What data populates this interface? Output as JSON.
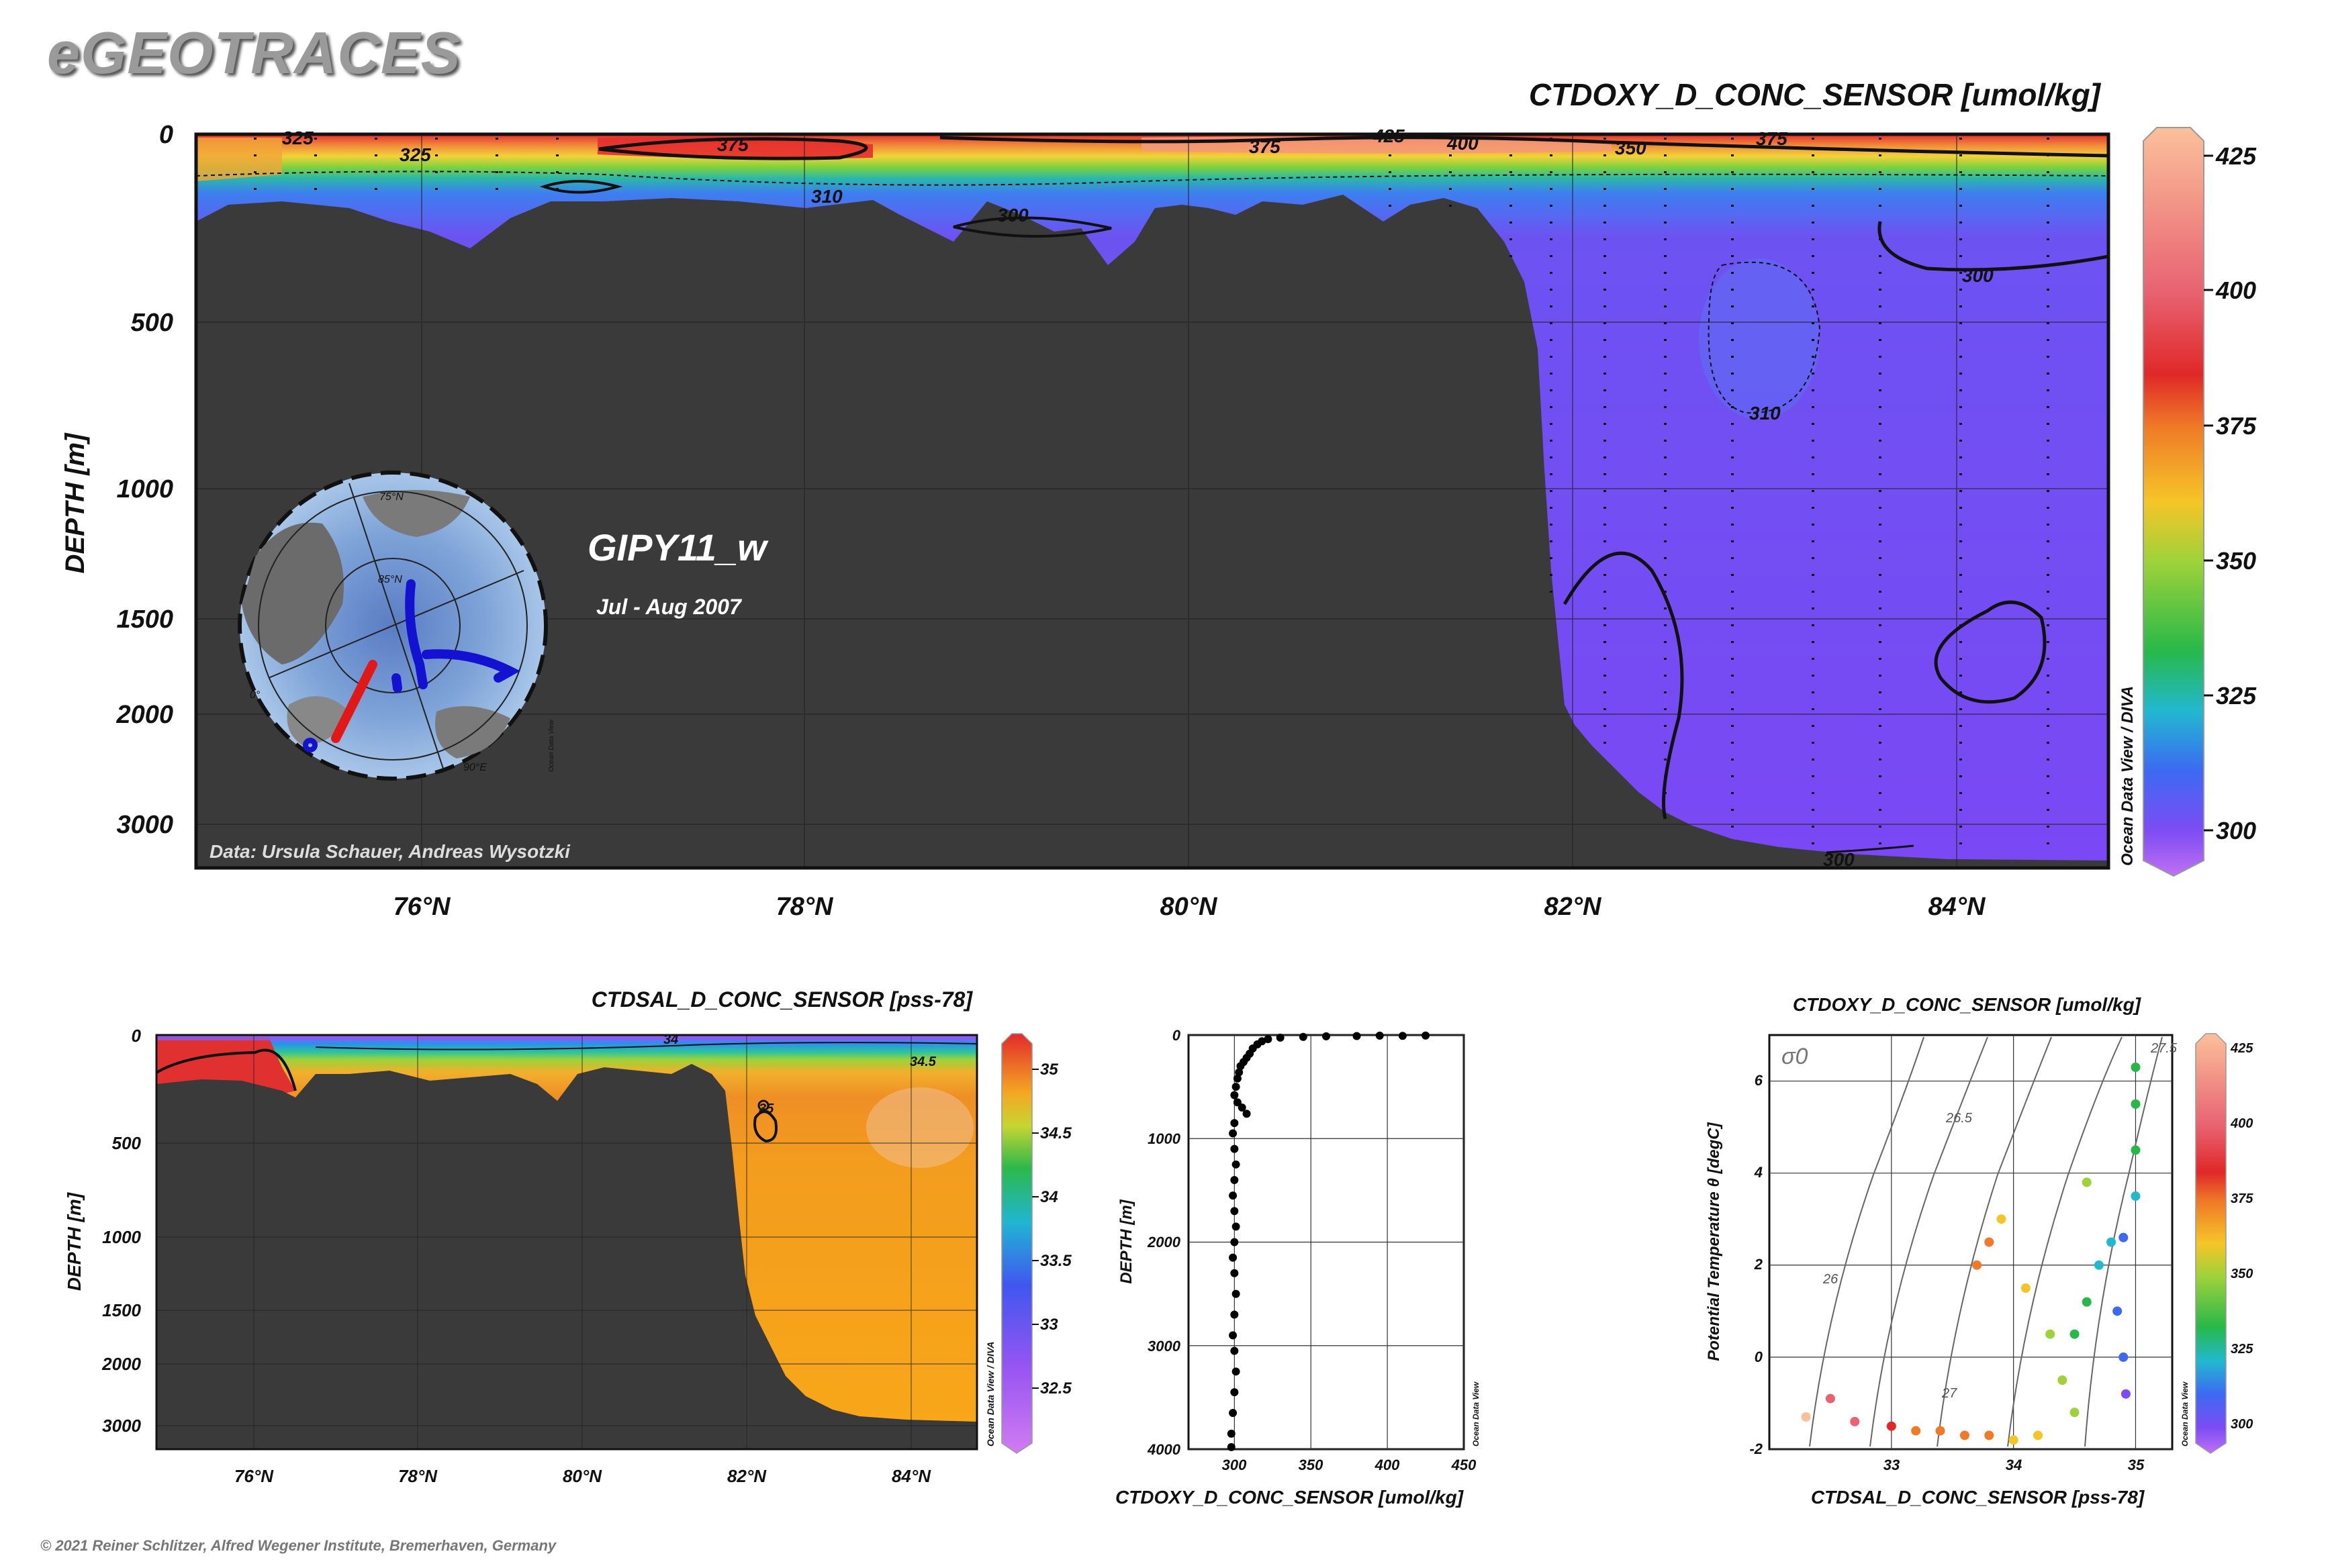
{
  "brand": "eGEOTRACES",
  "copyright": "© 2021 Reiner Schlitzer, Alfred Wegener Institute, Bremerhaven, Germany",
  "main_section": {
    "title": "CTDOXY_D_CONC_SENSOR [umol/kg]",
    "ylabel": "DEPTH [m]",
    "cruise": "GIPY11_w",
    "period": "Jul - Aug 2007",
    "credit": "Data: Ursula Schauer, Andreas Wysotzki",
    "odv_label": "Ocean Data View / DIVA",
    "x_ticks": [
      "76°N",
      "78°N",
      "80°N",
      "82°N",
      "84°N"
    ],
    "y_ticks": [
      "0",
      "500",
      "1000",
      "1500",
      "2000",
      "3000"
    ],
    "contour_labels": [
      "325",
      "325",
      "375",
      "375",
      "425",
      "400",
      "350",
      "375",
      "310",
      "300",
      "300",
      "310",
      "300"
    ],
    "colorbar_ticks": [
      "425",
      "400",
      "375",
      "350",
      "325",
      "300"
    ],
    "map_labels": [
      "75°N",
      "85°N",
      "90°E",
      "0°",
      "Ocean Data View"
    ]
  },
  "sal_section": {
    "title": "CTDSAL_D_CONC_SENSOR [pss-78]",
    "ylabel": "DEPTH [m]",
    "odv_label": "Ocean Data View / DIVA",
    "x_ticks": [
      "76°N",
      "78°N",
      "80°N",
      "82°N",
      "84°N"
    ],
    "y_ticks": [
      "0",
      "500",
      "1000",
      "1500",
      "2000",
      "3000"
    ],
    "contour_labels": [
      "34",
      "34.5",
      "35"
    ],
    "colorbar_ticks": [
      "35",
      "34.5",
      "34",
      "33.5",
      "33",
      "32.5"
    ]
  },
  "profile": {
    "xlabel": "CTDOXY_D_CONC_SENSOR [umol/kg]",
    "ylabel": "DEPTH [m]",
    "odv_label": "Ocean Data View",
    "x_ticks": [
      "300",
      "350",
      "400",
      "450"
    ],
    "y_ticks": [
      "0",
      "1000",
      "2000",
      "3000",
      "4000"
    ]
  },
  "ts_plot": {
    "title": "CTDOXY_D_CONC_SENSOR [umol/kg]",
    "xlabel": "CTDSAL_D_CONC_SENSOR [pss-78]",
    "ylabel": "Potential Temperature θ [degC]",
    "sigma_label": "σ0",
    "odv_label": "Ocean Data View",
    "x_ticks": [
      "33",
      "34",
      "35"
    ],
    "y_ticks": [
      "6",
      "4",
      "2",
      "0",
      "-2"
    ],
    "isopycnal_labels": [
      "26",
      "26.5",
      "27",
      "27.5"
    ],
    "colorbar_ticks": [
      "425",
      "400",
      "375",
      "350",
      "325",
      "300"
    ]
  },
  "chart_data": [
    {
      "type": "heatmap",
      "title": "CTDOXY_D_CONC_SENSOR [umol/kg]",
      "xlabel": "",
      "ylabel": "DEPTH [m]",
      "xlim": [
        74.8,
        84.8
      ],
      "ylim": [
        3300,
        0
      ],
      "x_ticks": [
        76,
        78,
        80,
        82,
        84
      ],
      "y_ticks": [
        0,
        500,
        1000,
        1500,
        2000,
        3000
      ],
      "colorbar": {
        "min": 292,
        "max": 430,
        "ticks": [
          300,
          325,
          350,
          375,
          400,
          425
        ]
      },
      "field_description_values": {
        "surface": 380,
        "upper": 325,
        "intermediate": 310,
        "deep": 300
      },
      "contours": [
        300,
        310,
        325,
        350,
        375,
        400,
        425
      ],
      "bathymetry_depth": [
        {
          "lat": 74.8,
          "depth": 380
        },
        {
          "lat": 75.5,
          "depth": 340
        },
        {
          "lat": 76.0,
          "depth": 420
        },
        {
          "lat": 77.0,
          "depth": 300
        },
        {
          "lat": 78.0,
          "depth": 310
        },
        {
          "lat": 79.0,
          "depth": 420
        },
        {
          "lat": 80.0,
          "depth": 300
        },
        {
          "lat": 81.0,
          "depth": 360
        },
        {
          "lat": 81.5,
          "depth": 500
        },
        {
          "lat": 81.8,
          "depth": 900
        },
        {
          "lat": 82.0,
          "depth": 2100
        },
        {
          "lat": 82.5,
          "depth": 2900
        },
        {
          "lat": 83.0,
          "depth": 3150
        },
        {
          "lat": 84.0,
          "depth": 3250
        },
        {
          "lat": 84.8,
          "depth": 3260
        }
      ]
    },
    {
      "type": "heatmap",
      "title": "CTDSAL_D_CONC_SENSOR [pss-78]",
      "xlabel": "",
      "ylabel": "DEPTH [m]",
      "xlim": [
        74.8,
        84.8
      ],
      "ylim": [
        3300,
        0
      ],
      "colorbar": {
        "min": 32.1,
        "max": 35.2,
        "ticks": [
          32.5,
          33,
          33.5,
          34,
          34.5,
          35
        ]
      },
      "contours": [
        34,
        34.5,
        35
      ]
    },
    {
      "type": "scatter",
      "title": "",
      "xlabel": "CTDOXY_D_CONC_SENSOR [umol/kg]",
      "ylabel": "DEPTH [m]",
      "xlim": [
        270,
        450
      ],
      "ylim": [
        4000,
        0
      ],
      "x_ticks": [
        300,
        350,
        400,
        450
      ],
      "y_ticks": [
        0,
        1000,
        2000,
        3000,
        4000
      ],
      "points": [
        [
          425,
          5
        ],
        [
          410,
          8
        ],
        [
          395,
          6
        ],
        [
          380,
          10
        ],
        [
          360,
          12
        ],
        [
          345,
          18
        ],
        [
          330,
          25
        ],
        [
          322,
          40
        ],
        [
          318,
          60
        ],
        [
          315,
          90
        ],
        [
          312,
          130
        ],
        [
          310,
          180
        ],
        [
          308,
          220
        ],
        [
          306,
          260
        ],
        [
          304,
          300
        ],
        [
          303,
          360
        ],
        [
          302,
          420
        ],
        [
          301,
          500
        ],
        [
          300,
          580
        ],
        [
          302,
          650
        ],
        [
          305,
          700
        ],
        [
          308,
          760
        ],
        [
          300,
          850
        ],
        [
          299,
          950
        ],
        [
          300,
          1100
        ],
        [
          301,
          1250
        ],
        [
          300,
          1400
        ],
        [
          299,
          1550
        ],
        [
          300,
          1700
        ],
        [
          301,
          1850
        ],
        [
          300,
          2000
        ],
        [
          299,
          2150
        ],
        [
          300,
          2300
        ],
        [
          301,
          2500
        ],
        [
          300,
          2700
        ],
        [
          299,
          2900
        ],
        [
          300,
          3050
        ],
        [
          301,
          3250
        ],
        [
          300,
          3450
        ],
        [
          299,
          3650
        ],
        [
          298,
          3850
        ],
        [
          298,
          3980
        ]
      ]
    },
    {
      "type": "scatter",
      "title": "CTDOXY_D_CONC_SENSOR [umol/kg]",
      "xlabel": "CTDSAL_D_CONC_SENSOR [pss-78]",
      "ylabel": "Potential Temperature θ [degC]",
      "xlim": [
        32.0,
        35.3
      ],
      "ylim": [
        -2,
        7
      ],
      "x_ticks": [
        33,
        34,
        35
      ],
      "y_ticks": [
        -2,
        0,
        2,
        4,
        6
      ],
      "color_variable": "CTDOXY_D_CONC_SENSOR [umol/kg]",
      "points": [
        {
          "s": 32.3,
          "t": -1.3,
          "o": 405
        },
        {
          "s": 32.5,
          "t": -0.9,
          "o": 400
        },
        {
          "s": 32.7,
          "t": -1.4,
          "o": 395
        },
        {
          "s": 33.0,
          "t": -1.5,
          "o": 380
        },
        {
          "s": 33.2,
          "t": -1.6,
          "o": 375
        },
        {
          "s": 33.4,
          "t": -1.6,
          "o": 370
        },
        {
          "s": 33.6,
          "t": -1.7,
          "o": 365
        },
        {
          "s": 33.8,
          "t": -1.7,
          "o": 362
        },
        {
          "s": 34.0,
          "t": -1.8,
          "o": 360
        },
        {
          "s": 34.2,
          "t": -1.7,
          "o": 355
        },
        {
          "s": 33.7,
          "t": 2.0,
          "o": 365
        },
        {
          "s": 33.8,
          "t": 2.5,
          "o": 362
        },
        {
          "s": 33.9,
          "t": 3.0,
          "o": 360
        },
        {
          "s": 34.1,
          "t": 1.5,
          "o": 355
        },
        {
          "s": 34.3,
          "t": 0.5,
          "o": 348
        },
        {
          "s": 34.4,
          "t": -0.5,
          "o": 340
        },
        {
          "s": 34.5,
          "t": 0.5,
          "o": 332
        },
        {
          "s": 34.6,
          "t": 1.2,
          "o": 325
        },
        {
          "s": 34.7,
          "t": 2.0,
          "o": 318
        },
        {
          "s": 34.8,
          "t": 2.5,
          "o": 312
        },
        {
          "s": 34.85,
          "t": 1.0,
          "o": 306
        },
        {
          "s": 34.9,
          "t": 0.0,
          "o": 302
        },
        {
          "s": 34.92,
          "t": -0.8,
          "o": 300
        },
        {
          "s": 34.9,
          "t": 2.6,
          "o": 306
        },
        {
          "s": 35.0,
          "t": 3.5,
          "o": 318
        },
        {
          "s": 35.0,
          "t": 4.5,
          "o": 326
        },
        {
          "s": 35.0,
          "t": 5.5,
          "o": 328
        },
        {
          "s": 35.0,
          "t": 6.3,
          "o": 330
        },
        {
          "s": 34.6,
          "t": 3.8,
          "o": 338
        },
        {
          "s": 34.5,
          "t": -1.2,
          "o": 345
        }
      ]
    }
  ]
}
